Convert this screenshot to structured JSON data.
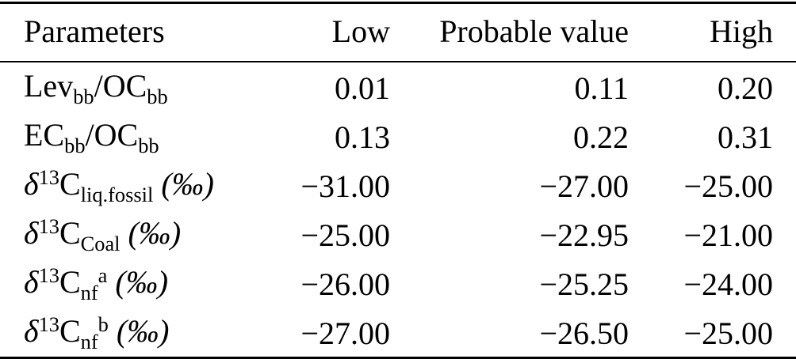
{
  "page": {
    "background_color": "#ffffff",
    "text_color": "#000000",
    "rule_color": "#000000"
  },
  "table": {
    "columns": [
      {
        "label": "Parameters"
      },
      {
        "label": "Low"
      },
      {
        "label": "Probable value"
      },
      {
        "label": "High"
      }
    ],
    "rows": [
      {
        "param": [
          {
            "t": "Lev"
          },
          {
            "t": "bb",
            "s": "sub"
          },
          {
            "t": "/OC"
          },
          {
            "t": "bb",
            "s": "sub"
          }
        ],
        "low": "0.01",
        "probable": "0.11",
        "high": "0.20"
      },
      {
        "param": [
          {
            "t": "EC"
          },
          {
            "t": "bb",
            "s": "sub"
          },
          {
            "t": "/OC"
          },
          {
            "t": "bb",
            "s": "sub"
          }
        ],
        "low": "0.13",
        "probable": "0.22",
        "high": "0.31"
      },
      {
        "param": [
          {
            "t": "δ",
            "s": "it"
          },
          {
            "t": "13",
            "s": "sup"
          },
          {
            "t": "C"
          },
          {
            "t": "liq.fossil",
            "s": "sub"
          },
          {
            "t": " (‰)",
            "s": "it"
          }
        ],
        "low": "−31.00",
        "probable": "−27.00",
        "high": "−25.00"
      },
      {
        "param": [
          {
            "t": "δ",
            "s": "it"
          },
          {
            "t": "13",
            "s": "sup"
          },
          {
            "t": "C"
          },
          {
            "t": "Coal",
            "s": "sub"
          },
          {
            "t": " (‰)",
            "s": "it"
          }
        ],
        "low": "−25.00",
        "probable": "−22.95",
        "high": "−21.00"
      },
      {
        "param": [
          {
            "t": "δ",
            "s": "it"
          },
          {
            "t": "13",
            "s": "sup"
          },
          {
            "t": "C"
          },
          {
            "t": "nf",
            "s": "sub"
          },
          {
            "t": "a",
            "s": "sup"
          },
          {
            "t": " (‰)",
            "s": "it"
          }
        ],
        "low": "−26.00",
        "probable": "−25.25",
        "high": "−24.00"
      },
      {
        "param": [
          {
            "t": "δ",
            "s": "it"
          },
          {
            "t": "13",
            "s": "sup"
          },
          {
            "t": "C"
          },
          {
            "t": "nf",
            "s": "sub"
          },
          {
            "t": "b",
            "s": "sup"
          },
          {
            "t": " (‰)",
            "s": "it"
          }
        ],
        "low": "−27.00",
        "probable": "−26.50",
        "high": "−25.00"
      }
    ]
  }
}
